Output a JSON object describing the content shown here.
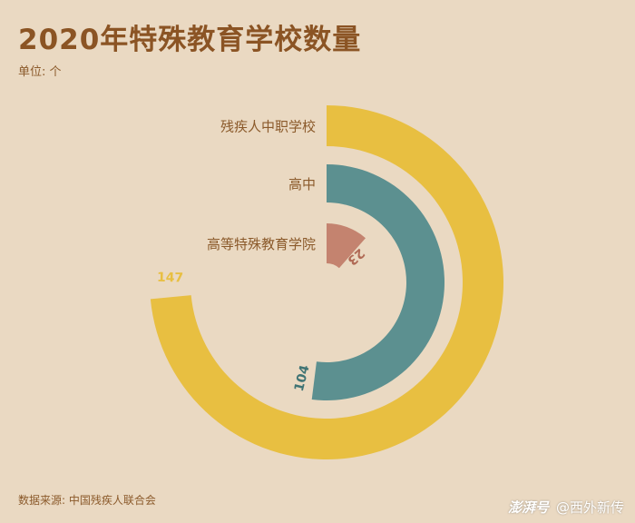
{
  "header": {
    "title": "2020年特殊教育学校数量",
    "unit": "单位: 个"
  },
  "footer": {
    "source": "数据来源: 中国残疾人联合会",
    "brand_logo": "澎湃号",
    "brand_account": "@西外新传"
  },
  "chart_data": {
    "type": "radial-bar",
    "title": "2020年特殊教育学校数量",
    "unit": "个",
    "categories": [
      "残疾人中职学校",
      "高中",
      "高等特殊教育学院"
    ],
    "values": [
      147,
      104,
      23
    ],
    "colors": [
      "#e8bf41",
      "#5c9090",
      "#c4836f"
    ],
    "label_colors": [
      "#e8bf41",
      "#3f7474",
      "#b06a55"
    ],
    "scale_max": 200,
    "legend": "none",
    "grid": false
  }
}
